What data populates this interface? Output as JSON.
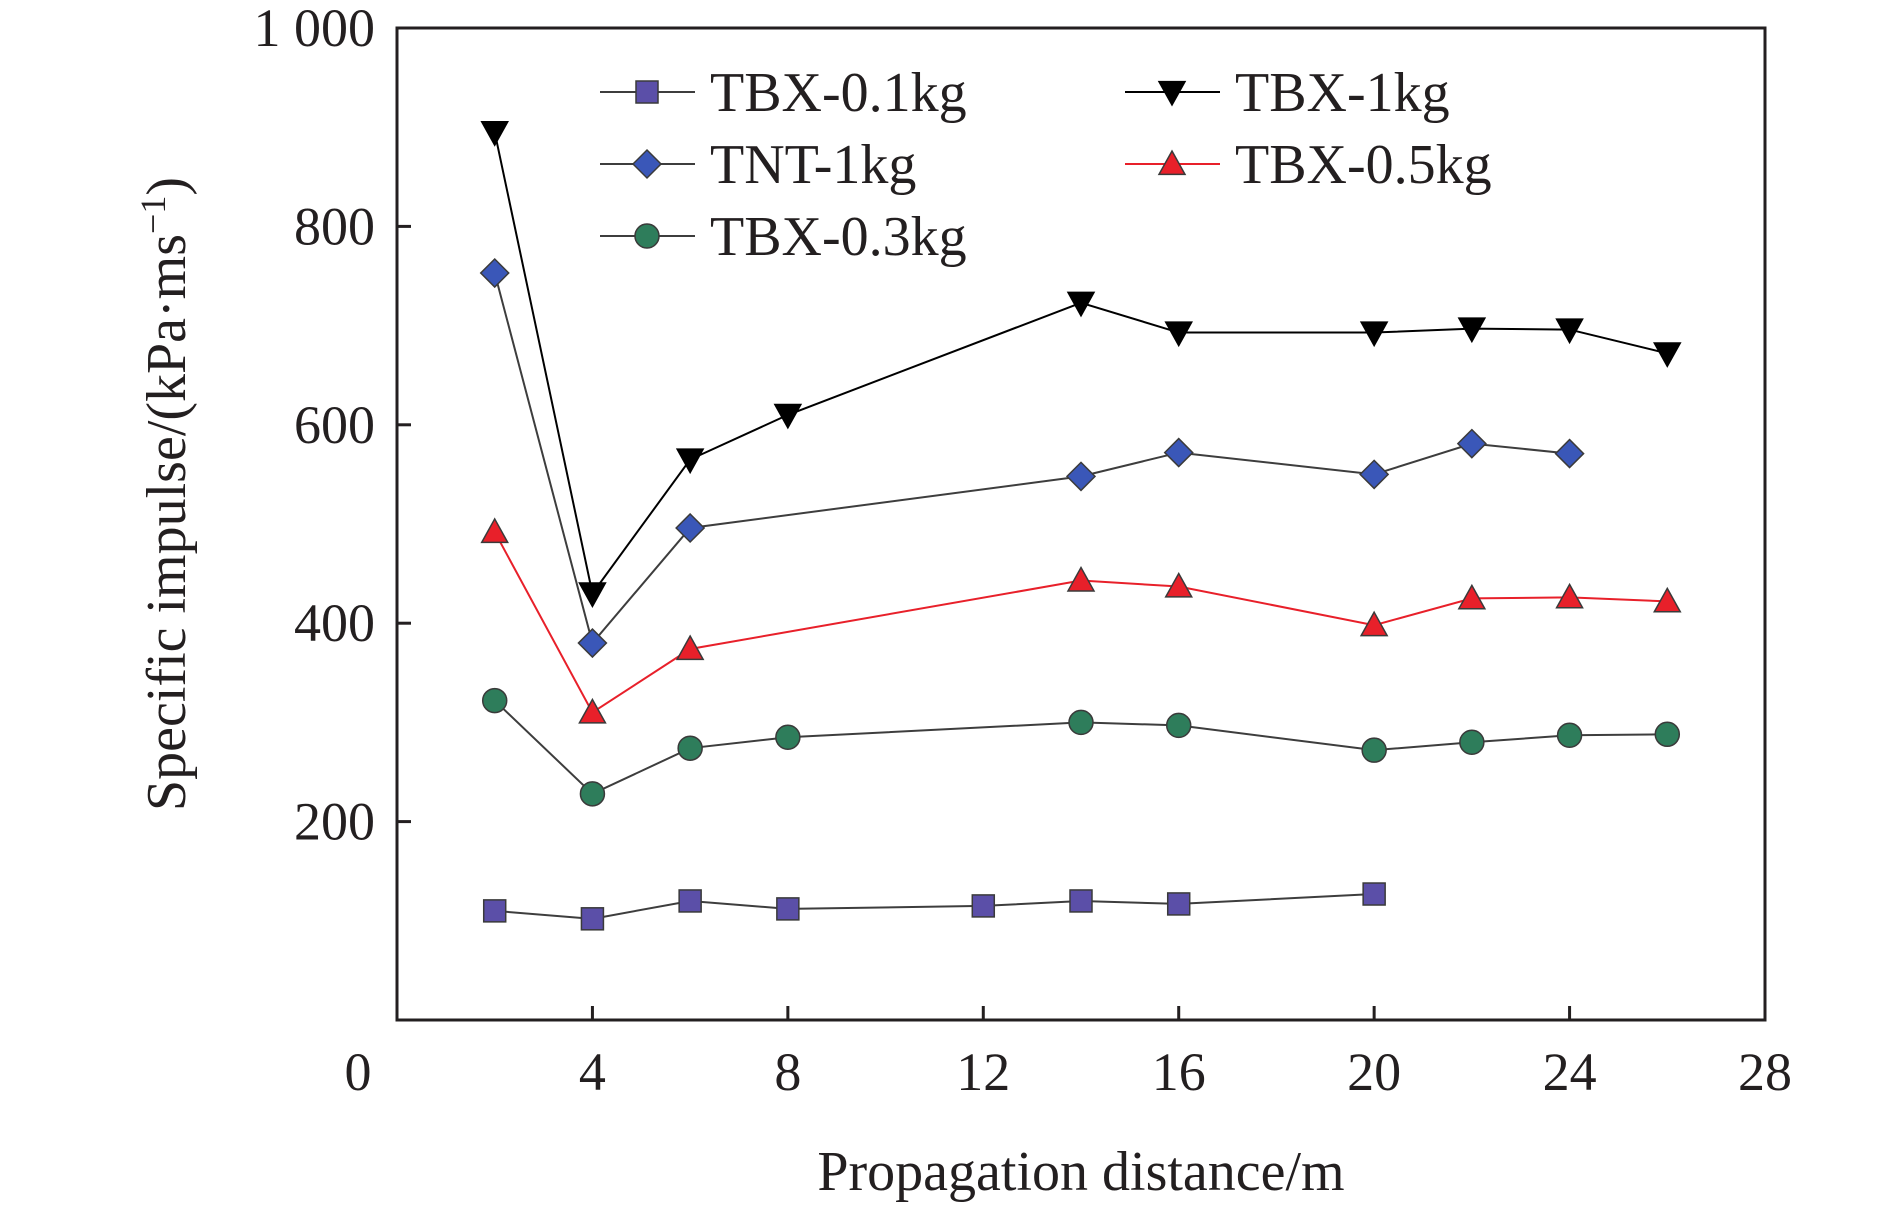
{
  "chart_data": {
    "type": "line",
    "xlabel": "Propagation distance/m",
    "ylabel_main": "Specific impulse/(kPa·ms",
    "ylabel_sup": "−1",
    "ylabel_close": ")",
    "xlim": [
      0,
      28
    ],
    "ylim": [
      0,
      1000
    ],
    "x_ticks": [
      0,
      4,
      8,
      12,
      16,
      20,
      24,
      28
    ],
    "y_ticks": [
      200,
      400,
      600,
      800,
      1000
    ],
    "x_tick_labels": [
      "0",
      "4",
      "8",
      "12",
      "16",
      "20",
      "24",
      "28"
    ],
    "y_tick_labels": [
      "200",
      "400",
      "600",
      "800",
      "1 000"
    ],
    "grid": false,
    "legend_position": "top",
    "series": [
      {
        "name": "TBX-0.1kg",
        "marker": "square",
        "color": "#5b4fa8",
        "x": [
          2,
          4,
          6,
          8,
          12,
          14,
          16,
          20
        ],
        "y": [
          110,
          102,
          120,
          112,
          115,
          120,
          117,
          127
        ]
      },
      {
        "name": "TBX-1kg",
        "marker": "triangle-down",
        "color": "#000000",
        "x": [
          2,
          4,
          6,
          8,
          14,
          16,
          20,
          22,
          24,
          26
        ],
        "y": [
          895,
          430,
          565,
          610,
          723,
          693,
          693,
          697,
          696,
          672
        ]
      },
      {
        "name": "TNT-1kg",
        "marker": "diamond",
        "color": "#3a57b8",
        "x": [
          2,
          4,
          6,
          14,
          16,
          20,
          22,
          24
        ],
        "y": [
          753,
          380,
          496,
          548,
          572,
          550,
          581,
          571
        ]
      },
      {
        "name": "TBX-0.5kg",
        "marker": "triangle-up",
        "color": "#e8202a",
        "x": [
          2,
          4,
          6,
          14,
          16,
          20,
          22,
          24,
          26
        ],
        "y": [
          492,
          310,
          374,
          443,
          437,
          398,
          425,
          426,
          422
        ]
      },
      {
        "name": "TBX-0.3kg",
        "marker": "circle",
        "color": "#2e7d5b",
        "x": [
          2,
          4,
          6,
          8,
          14,
          16,
          20,
          22,
          24,
          26
        ],
        "y": [
          322,
          228,
          274,
          285,
          300,
          297,
          272,
          280,
          287,
          288
        ]
      }
    ]
  }
}
